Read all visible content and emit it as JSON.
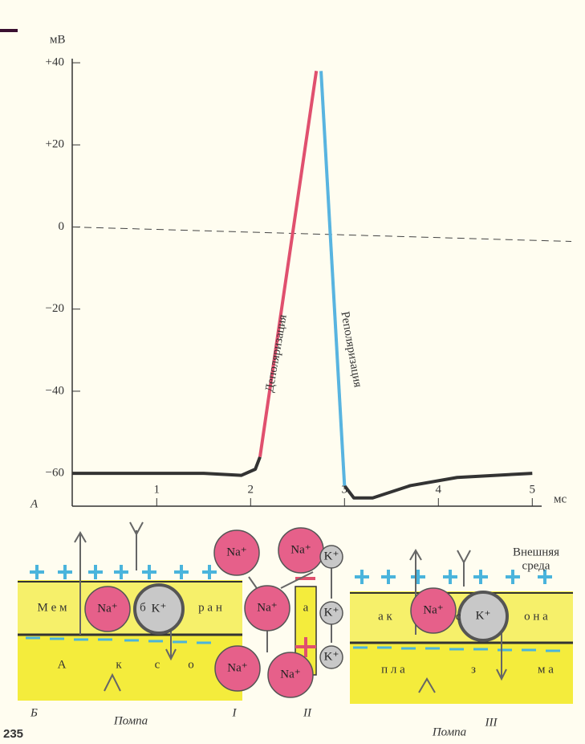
{
  "chart_data": {
    "type": "line",
    "y_label": "мВ",
    "x_label": "мс",
    "panel_label": "А",
    "x": [
      0.1,
      0.5,
      1,
      1.5,
      1.9,
      2.05,
      2.1,
      2.7,
      2.75,
      3.0,
      3.1,
      3.3,
      3.7,
      4.2,
      5.0
    ],
    "series": [
      {
        "color": "#333333",
        "values": [
          -60,
          -60,
          -60,
          -60,
          -60.5,
          -59,
          -56,
          null,
          null,
          -63,
          -66,
          -66,
          -63,
          -61,
          -60
        ]
      },
      {
        "name": "Деполяризация",
        "color": "#e0506e",
        "values": [
          null,
          null,
          null,
          null,
          null,
          null,
          -56,
          38,
          null,
          null,
          null,
          null,
          null,
          null,
          null
        ]
      },
      {
        "name": "Реполяризация",
        "color": "#58b4e0",
        "values": [
          null,
          null,
          null,
          null,
          null,
          null,
          null,
          null,
          38,
          -63,
          null,
          null,
          null,
          null,
          null
        ]
      }
    ],
    "xlim": [
      0.1,
      5.1
    ],
    "ylim": [
      -68,
      41
    ],
    "xticks": [
      1,
      2,
      3,
      4,
      5
    ],
    "yticks": [
      {
        "value": 40,
        "label": "+40"
      },
      {
        "value": 20,
        "label": "+20"
      },
      0,
      {
        "value": -20,
        "label": "−20"
      },
      {
        "value": -40,
        "label": "−40"
      },
      {
        "value": -60,
        "label": "−60"
      }
    ],
    "zero_line": true
  },
  "diagram": {
    "panel_label": "Б",
    "page_number": "235",
    "outer_medium": [
      "Внешняя",
      "среда"
    ],
    "ions": [
      "Na⁺",
      "K⁺",
      "Na⁺",
      "Na⁺",
      "Na⁺",
      "Na⁺",
      "Na⁺",
      "K⁺",
      "K⁺",
      "K⁺",
      "Na⁺",
      "K⁺"
    ],
    "membrane_letters": [
      "М е м",
      "б",
      "р а н",
      "а",
      "а к",
      "с",
      "о н а"
    ],
    "axon_letters": [
      "А",
      "к",
      "с",
      "о",
      "п л а",
      "з",
      "м а"
    ],
    "captions": [
      "Помпа",
      "I",
      "II",
      "Помпа",
      "III"
    ]
  }
}
